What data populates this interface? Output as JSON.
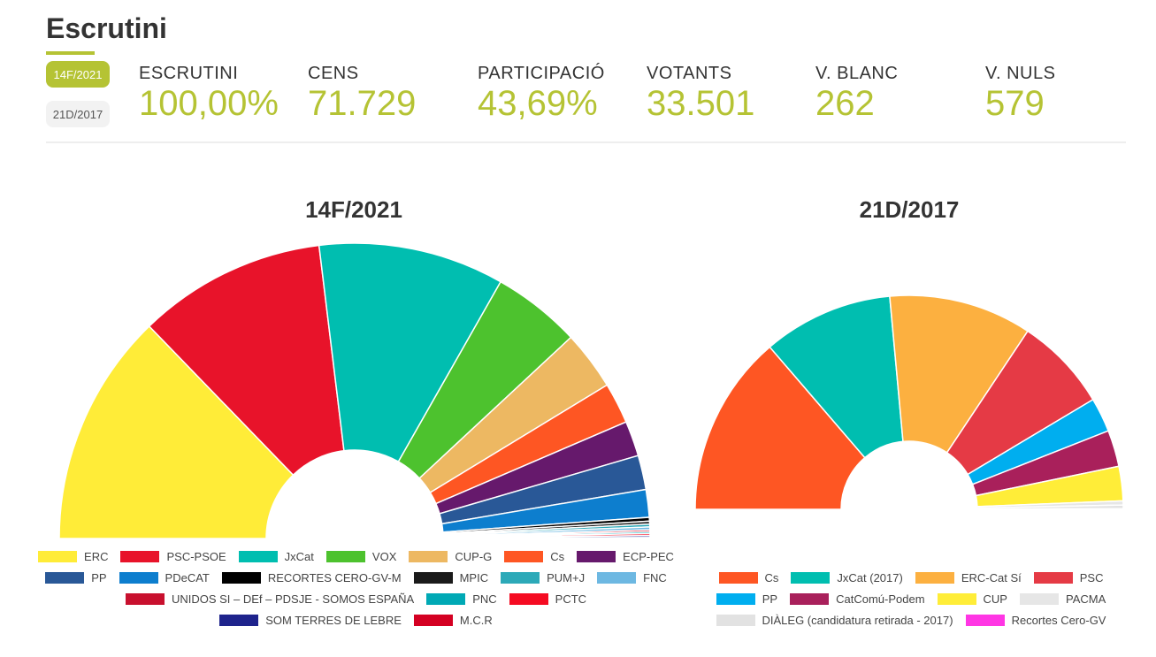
{
  "header": {
    "title": "Escrutini"
  },
  "election_tabs": [
    {
      "label": "14F/2021",
      "active": true
    },
    {
      "label": "21D/2017",
      "active": false
    }
  ],
  "stats": [
    {
      "label": "ESCRUTINI",
      "value": "100,00%"
    },
    {
      "label": "CENS",
      "value": "71.729"
    },
    {
      "label": "PARTICIPACIÓ",
      "value": "43,69%"
    },
    {
      "label": "VOTANTS",
      "value": "33.501"
    },
    {
      "label": "V. BLANC",
      "value": "262"
    },
    {
      "label": "V. NULS",
      "value": "579"
    }
  ],
  "colors": {
    "accent": "#b5c334"
  },
  "chart_data": [
    {
      "type": "pie",
      "subtype": "semicircle-donut",
      "title": "14F/2021",
      "legend_position": "bottom",
      "categories": [
        "ERC",
        "PSC-PSOE",
        "JxCat",
        "VOX",
        "CUP-G",
        "Cs",
        "ECP-PEC",
        "PP",
        "PDeCAT",
        "RECORTES CERO-GV-M",
        "MPIC",
        "PUM+J",
        "FNC",
        "UNIDOS SI – DEf – PDSJE - SOMOS ESPAÑA",
        "PNC",
        "PCTC",
        "SOM TERRES DE LEBRE",
        "M.C.R"
      ],
      "values": [
        24.5,
        19.8,
        19.5,
        9.3,
        6.2,
        4.3,
        3.7,
        3.6,
        2.9,
        0.4,
        0.3,
        0.3,
        0.3,
        0.2,
        0.2,
        0.2,
        0.2,
        0.1
      ],
      "colors": [
        "#FFEC38",
        "#E8132A",
        "#00BEB0",
        "#4DC22E",
        "#EDB862",
        "#FE5623",
        "#66196C",
        "#295897",
        "#0D7ECE",
        "#000000",
        "#1A1A1A",
        "#2CA9B8",
        "#6DB8E2",
        "#C8102E",
        "#00A9B5",
        "#F50B22",
        "#1E238C",
        "#D40022"
      ]
    },
    {
      "type": "pie",
      "subtype": "semicircle-donut",
      "title": "21D/2017",
      "legend_position": "bottom",
      "categories": [
        "Cs",
        "JxCat (2017)",
        "ERC-Cat Sí",
        "PSC",
        "PP",
        "CatComú-Podem",
        "CUP",
        "PACMA",
        "DIÀLEG (candidatura retirada - 2017)",
        "Recortes Cero-GV"
      ],
      "values": [
        25.9,
        18.6,
        20.4,
        13.4,
        4.9,
        5.2,
        4.9,
        0.6,
        0.5,
        0.1
      ],
      "colors": [
        "#FE5623",
        "#00BEB0",
        "#FCB040",
        "#E53A45",
        "#00AEEF",
        "#A9205B",
        "#FFED38",
        "#E6E6E6",
        "#E2E2E2",
        "#FF36E4"
      ]
    }
  ]
}
